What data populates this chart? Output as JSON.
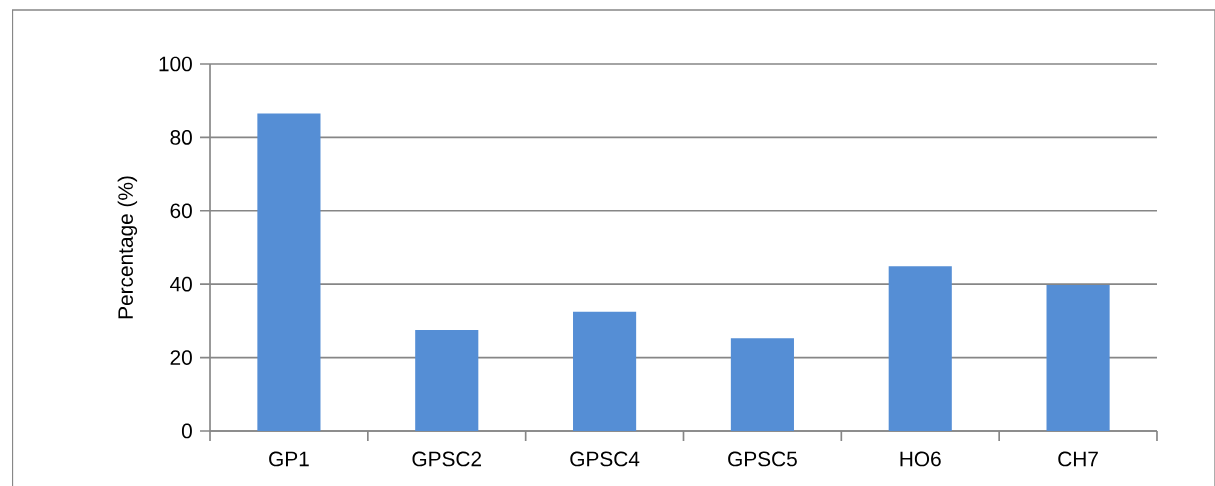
{
  "chart_data": {
    "type": "bar",
    "ylabel": "Percentage (%)",
    "categories": [
      "GP1",
      "GPSC2",
      "GPSC4",
      "GPSC5",
      "HO6",
      "CH7"
    ],
    "values": [
      86.5,
      27.5,
      32.5,
      25.3,
      44.9,
      39.8
    ],
    "color": "#558ed5",
    "ylim": [
      0,
      100
    ],
    "yticks": [
      0,
      20,
      40,
      60,
      80,
      100
    ],
    "grid": "y"
  }
}
